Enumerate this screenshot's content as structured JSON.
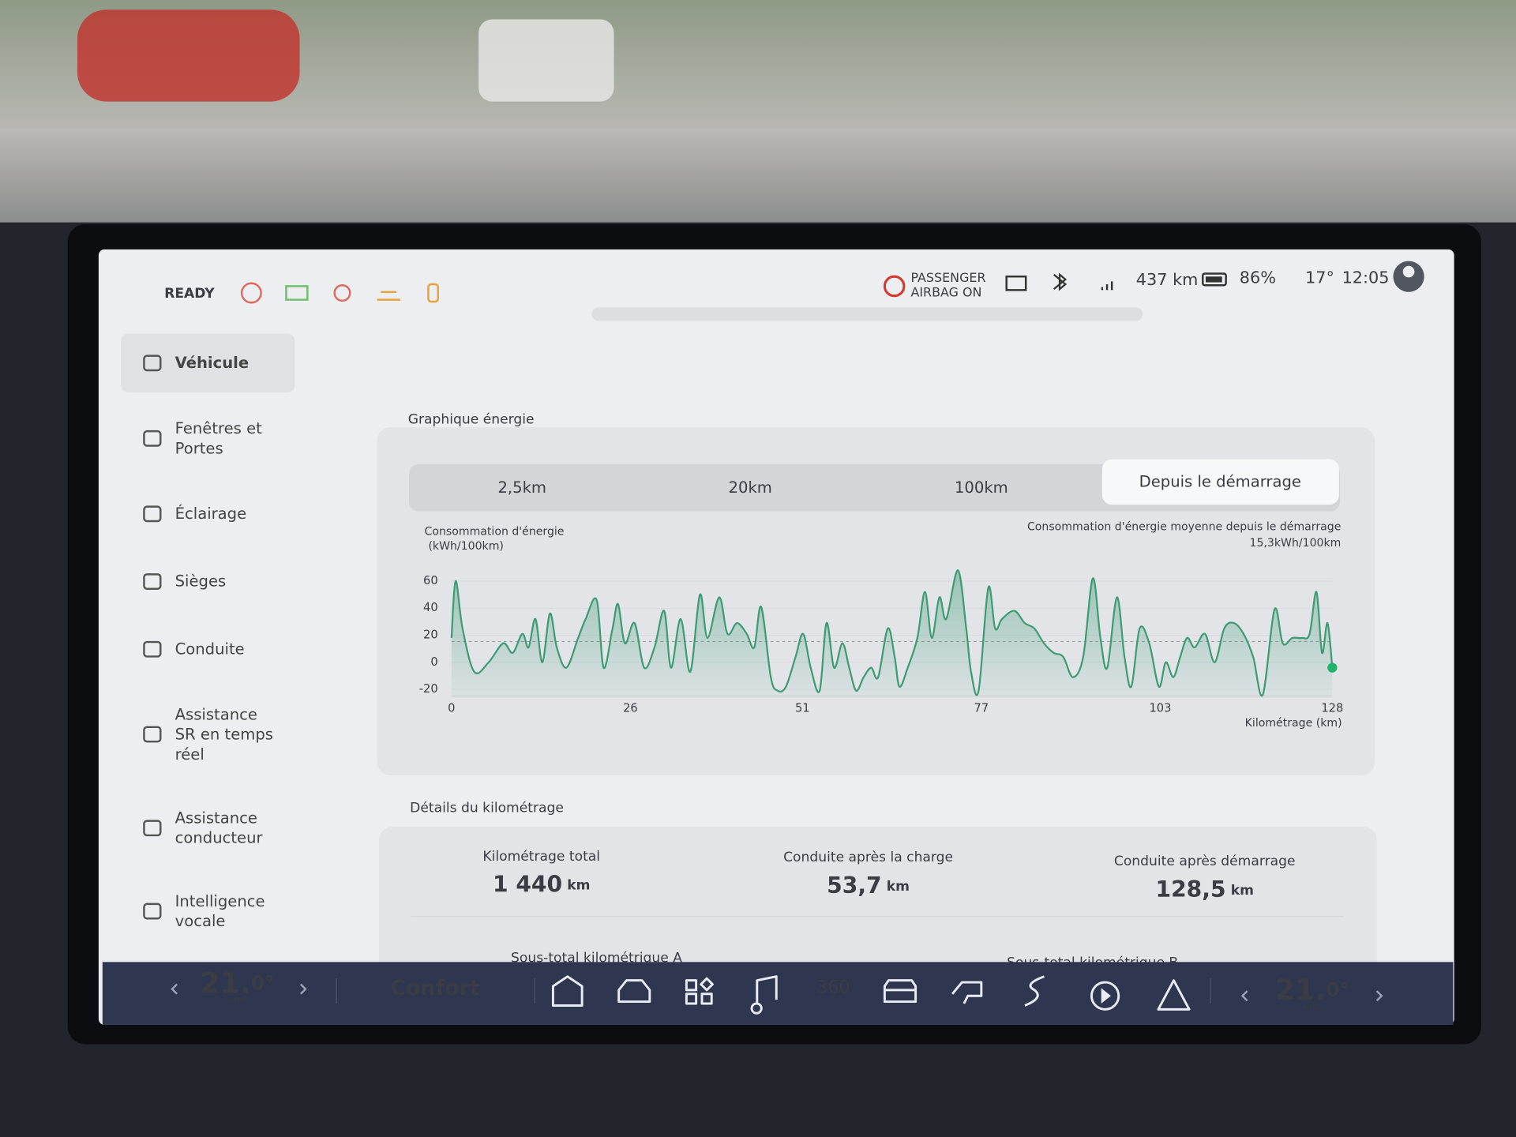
{
  "status_bar": {
    "ready": "READY",
    "airbag": [
      "PASSENGER",
      "AIRBAG ON"
    ],
    "range": "437 km",
    "battery": "86%",
    "temperature": "17°",
    "time": "12:05"
  },
  "sidebar": [
    {
      "label": [
        "Véhicule"
      ],
      "selected": true
    },
    {
      "label": [
        "Fenêtres et",
        "Portes"
      ]
    },
    {
      "label": [
        "Éclairage"
      ]
    },
    {
      "label": [
        "Sièges"
      ]
    },
    {
      "label": [
        "Conduite"
      ]
    },
    {
      "label": [
        "Assistance",
        "SR en temps",
        "réel"
      ]
    },
    {
      "label": [
        "Assistance",
        "conducteur"
      ]
    },
    {
      "label": [
        "Intelligence",
        "vocale"
      ]
    }
  ],
  "energy": {
    "heading": "Graphique énergie",
    "tabs": [
      "2,5km",
      "20km",
      "100km",
      "Depuis le démarrage"
    ],
    "selected_tab": 3,
    "chart_data": {
      "type": "line",
      "y_label": [
        "Consommation d'énergie",
        "(kWh/100km)"
      ],
      "average_label": [
        "Consommation d'énergie moyenne depuis le démarrage",
        "15,3kWh/100km"
      ],
      "average": 15.3,
      "x_label": "Kilométrage (km)",
      "x": [
        0,
        0.6,
        1.6,
        3.3,
        5.4,
        7.5,
        8.9,
        10.3,
        11.2,
        12.2,
        13.2,
        14.3,
        15.3,
        16.7,
        18.4,
        19.5,
        21.1,
        22.1,
        23.4,
        24.2,
        25.2,
        26.6,
        28,
        29.5,
        30.9,
        31.9,
        33.3,
        34.7,
        36.1,
        37.2,
        38.9,
        40.1,
        41.5,
        42.9,
        44,
        45,
        46.4,
        47.4,
        48.6,
        50,
        51.1,
        52.2,
        53.5,
        54.5,
        55.6,
        56.8,
        57.8,
        58.8,
        59.9,
        61,
        62,
        63.4,
        64.4,
        65.1,
        66.3,
        67.7,
        68.8,
        69.8,
        70.9,
        71.9,
        73.6,
        74.8,
        75.5,
        76.6,
        78,
        79,
        80,
        81.8,
        83.3,
        84.7,
        86.1,
        87.5,
        88.9,
        90.3,
        91.8,
        93.2,
        94.3,
        95.3,
        96.7,
        97.8,
        98.8,
        100,
        101.4,
        102.8,
        103.8,
        104.9,
        105.9,
        106.9,
        108,
        109.5,
        110.9,
        112.3,
        113.7,
        115.1,
        116.5,
        117.9,
        119.6,
        120.8,
        122.2,
        123.6,
        124.7,
        125.7,
        126.5,
        127.3,
        128
      ],
      "series": [
        {
          "color": "#3d9b74",
          "values": [
            18,
            60,
            25,
            -7,
            0,
            14,
            7,
            21,
            11,
            32,
            0,
            36,
            11,
            -4,
            18,
            32,
            46,
            -4,
            25,
            43,
            14,
            29,
            -4,
            11,
            38,
            -4,
            32,
            -7,
            50,
            18,
            48,
            21,
            29,
            21,
            11,
            41,
            -11,
            -21,
            -18,
            4,
            21,
            -4,
            -21,
            29,
            -4,
            14,
            -4,
            -21,
            -11,
            -4,
            -11,
            25,
            4,
            -18,
            -4,
            18,
            52,
            18,
            48,
            32,
            68,
            25,
            -7,
            -21,
            55,
            25,
            32,
            38,
            29,
            25,
            14,
            7,
            4,
            -11,
            4,
            62,
            18,
            -4,
            48,
            4,
            -18,
            25,
            14,
            -18,
            0,
            -11,
            4,
            18,
            11,
            21,
            0,
            25,
            29,
            21,
            4,
            -24,
            39,
            14,
            18,
            18,
            21,
            52,
            7,
            29,
            -4
          ]
        }
      ],
      "xlim": [
        0,
        128
      ],
      "ylim": [
        -25,
        70
      ],
      "xticks": [
        0,
        26,
        51,
        77,
        103,
        128
      ],
      "yticks": [
        -20,
        0,
        20,
        40,
        60
      ]
    }
  },
  "mileage": {
    "heading": "Détails du kilométrage",
    "stats": [
      {
        "label": "Kilométrage total",
        "value": "1 440",
        "unit": "km"
      },
      {
        "label": "Conduite après la charge",
        "value": "53,7",
        "unit": "km"
      },
      {
        "label": "Conduite après démarrage",
        "value": "128,5",
        "unit": "km"
      }
    ],
    "subtotals": [
      "Sous-total kilométrique A",
      "Sous-total kilométrique B"
    ]
  },
  "bottom_bar": {
    "left_temp": [
      "21.",
      "0°"
    ],
    "left_mode": "AUTO",
    "drive_mode": "Confort",
    "camera": "360",
    "right_temp": [
      "21.",
      "0°"
    ],
    "right_mode": "AUTO"
  }
}
